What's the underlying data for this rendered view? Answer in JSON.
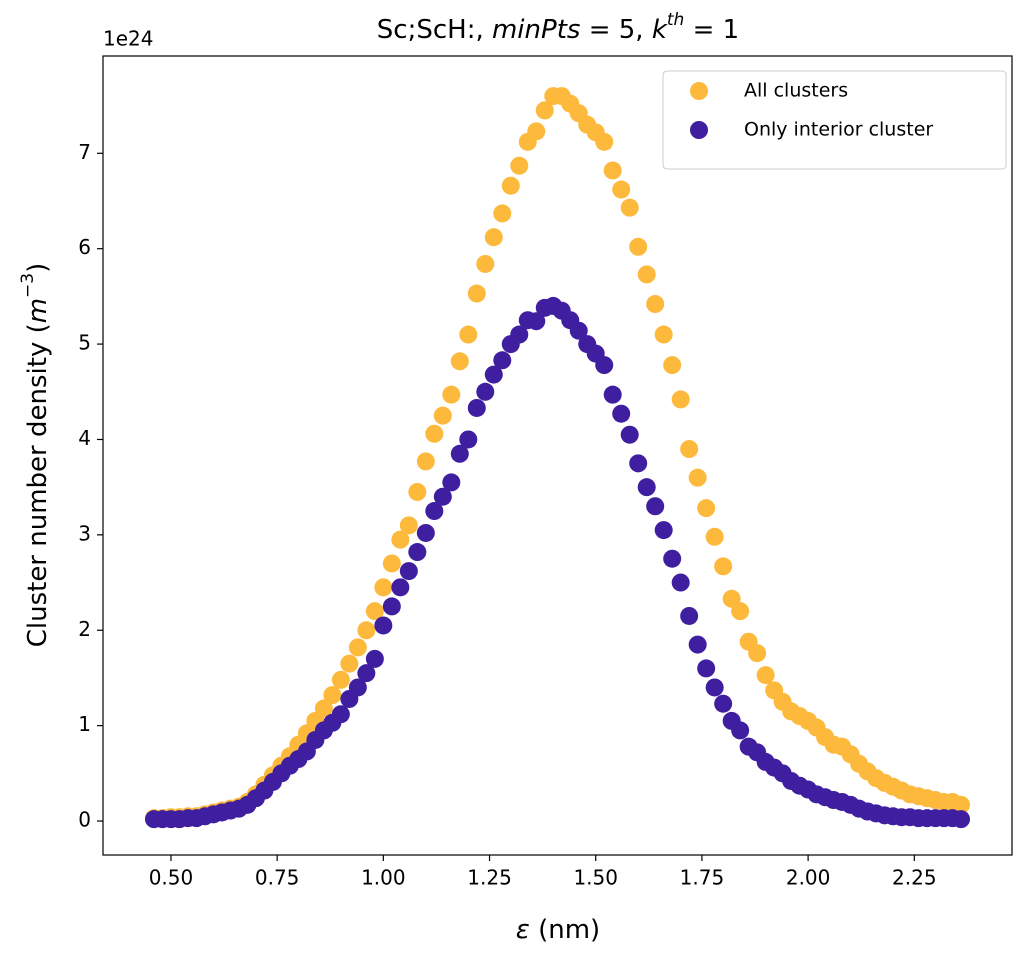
{
  "chart_data": {
    "type": "scatter",
    "title": [
      "Sc;ScH:, ",
      "minPts",
      " = 5, ",
      "k",
      "th",
      " = 1"
    ],
    "x_label": [
      "ε",
      " (nm)"
    ],
    "y_label": [
      "Cluster number density (",
      "m",
      "−3",
      ")"
    ],
    "y_offset_label": "1e24",
    "x": [
      0.46,
      0.48,
      0.5,
      0.52,
      0.54,
      0.56,
      0.58,
      0.6,
      0.62,
      0.64,
      0.66,
      0.68,
      0.7,
      0.72,
      0.74,
      0.76,
      0.78,
      0.8,
      0.82,
      0.84,
      0.86,
      0.88,
      0.9,
      0.92,
      0.94,
      0.96,
      0.98,
      1.0,
      1.02,
      1.04,
      1.06,
      1.08,
      1.1,
      1.12,
      1.14,
      1.16,
      1.18,
      1.2,
      1.22,
      1.24,
      1.26,
      1.28,
      1.3,
      1.32,
      1.34,
      1.36,
      1.38,
      1.4,
      1.42,
      1.44,
      1.46,
      1.48,
      1.5,
      1.52,
      1.54,
      1.56,
      1.58,
      1.6,
      1.62,
      1.64,
      1.66,
      1.68,
      1.7,
      1.72,
      1.74,
      1.76,
      1.78,
      1.8,
      1.82,
      1.84,
      1.86,
      1.88,
      1.9,
      1.92,
      1.94,
      1.96,
      1.98,
      2.0,
      2.02,
      2.04,
      2.06,
      2.08,
      2.1,
      2.12,
      2.14,
      2.16,
      2.18,
      2.2,
      2.22,
      2.24,
      2.26,
      2.28,
      2.3,
      2.32,
      2.34,
      2.36
    ],
    "series": [
      {
        "name": "All clusters",
        "color": "#fdb93c",
        "values": [
          0.03,
          0.03,
          0.04,
          0.04,
          0.05,
          0.05,
          0.07,
          0.09,
          0.11,
          0.13,
          0.15,
          0.2,
          0.28,
          0.38,
          0.48,
          0.58,
          0.68,
          0.8,
          0.92,
          1.05,
          1.18,
          1.32,
          1.48,
          1.65,
          1.82,
          2.0,
          2.2,
          2.45,
          2.7,
          2.95,
          3.1,
          3.45,
          3.77,
          4.06,
          4.25,
          4.47,
          4.82,
          5.1,
          5.53,
          5.84,
          6.12,
          6.37,
          6.66,
          6.87,
          7.12,
          7.23,
          7.45,
          7.6,
          7.6,
          7.52,
          7.42,
          7.3,
          7.22,
          7.12,
          6.82,
          6.62,
          6.43,
          6.02,
          5.73,
          5.42,
          5.1,
          4.78,
          4.42,
          3.9,
          3.6,
          3.28,
          2.98,
          2.67,
          2.33,
          2.2,
          1.88,
          1.76,
          1.53,
          1.37,
          1.25,
          1.15,
          1.1,
          1.05,
          0.98,
          0.88,
          0.8,
          0.78,
          0.7,
          0.6,
          0.52,
          0.45,
          0.4,
          0.36,
          0.32,
          0.28,
          0.26,
          0.24,
          0.22,
          0.2,
          0.2,
          0.17
        ]
      },
      {
        "name": "Only interior cluster",
        "color": "#3f1f9f",
        "values": [
          0.02,
          0.02,
          0.02,
          0.02,
          0.03,
          0.03,
          0.05,
          0.07,
          0.09,
          0.11,
          0.13,
          0.17,
          0.24,
          0.32,
          0.41,
          0.5,
          0.58,
          0.65,
          0.73,
          0.85,
          0.95,
          1.03,
          1.12,
          1.28,
          1.4,
          1.55,
          1.7,
          2.05,
          2.25,
          2.45,
          2.62,
          2.82,
          3.02,
          3.25,
          3.4,
          3.55,
          3.85,
          4.0,
          4.33,
          4.5,
          4.68,
          4.83,
          5.0,
          5.1,
          5.25,
          5.24,
          5.38,
          5.4,
          5.35,
          5.25,
          5.14,
          5.0,
          4.9,
          4.78,
          4.47,
          4.27,
          4.05,
          3.75,
          3.5,
          3.3,
          3.05,
          2.75,
          2.5,
          2.15,
          1.85,
          1.6,
          1.4,
          1.23,
          1.05,
          0.95,
          0.78,
          0.72,
          0.62,
          0.56,
          0.5,
          0.42,
          0.37,
          0.33,
          0.28,
          0.25,
          0.22,
          0.2,
          0.17,
          0.13,
          0.1,
          0.08,
          0.06,
          0.05,
          0.04,
          0.04,
          0.03,
          0.03,
          0.03,
          0.03,
          0.03,
          0.02
        ]
      }
    ],
    "xlim": [
      0.34,
      2.48
    ],
    "ylim": [
      -0.356,
      8.02
    ],
    "xticks": [
      {
        "value": 0.5,
        "label": "0.50"
      },
      0.75,
      {
        "value": 1.0,
        "label": "1.00"
      },
      1.25,
      {
        "value": 1.5,
        "label": "1.50"
      },
      1.75,
      {
        "value": 2.0,
        "label": "2.00"
      },
      2.25
    ],
    "yticks": [
      0,
      1,
      2,
      3,
      4,
      5,
      6,
      7
    ],
    "legend": "upper right",
    "grid": false
  }
}
